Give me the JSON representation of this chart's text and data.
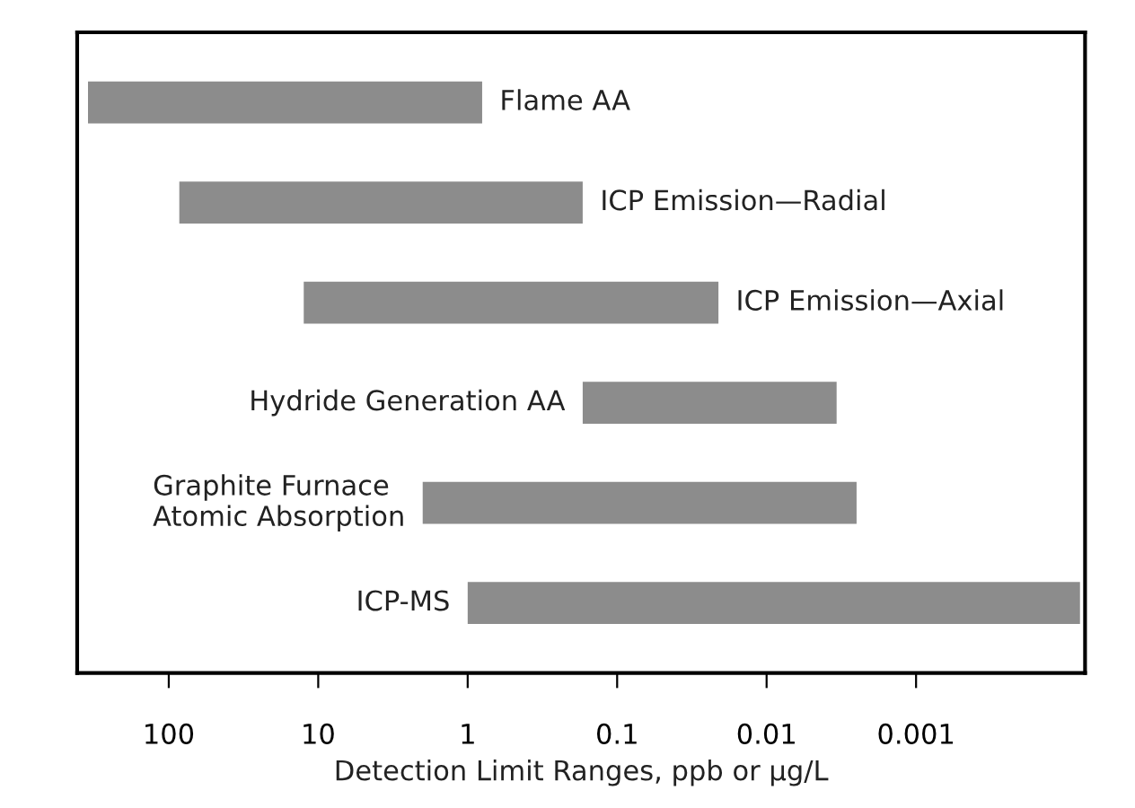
{
  "chart_data": {
    "type": "bar",
    "orientation": "horizontal",
    "log": "x",
    "xlabel": "Detection Limit Ranges, ppb or µg/L",
    "categories": [
      "Flame AA",
      "ICP Emission—Radial",
      "ICP Emission—Axial",
      "Hydride Generation AA",
      "Graphite Furnace\nAtomic Absorption",
      "ICP-MS"
    ],
    "base": [
      0.8,
      0.17,
      0.021,
      0.0034,
      0.0025,
      8e-05
    ],
    "values": [
      346.2,
      84.83,
      12.479,
      0.1666,
      1.9975,
      0.99992
    ],
    "color": "#8c8c8c",
    "xlim": [
      410,
      7.4e-05
    ],
    "xticks": [
      100,
      10,
      1,
      0.1,
      0.01,
      0.001
    ],
    "tick_labels": "x",
    "grid": false,
    "legend": false
  }
}
